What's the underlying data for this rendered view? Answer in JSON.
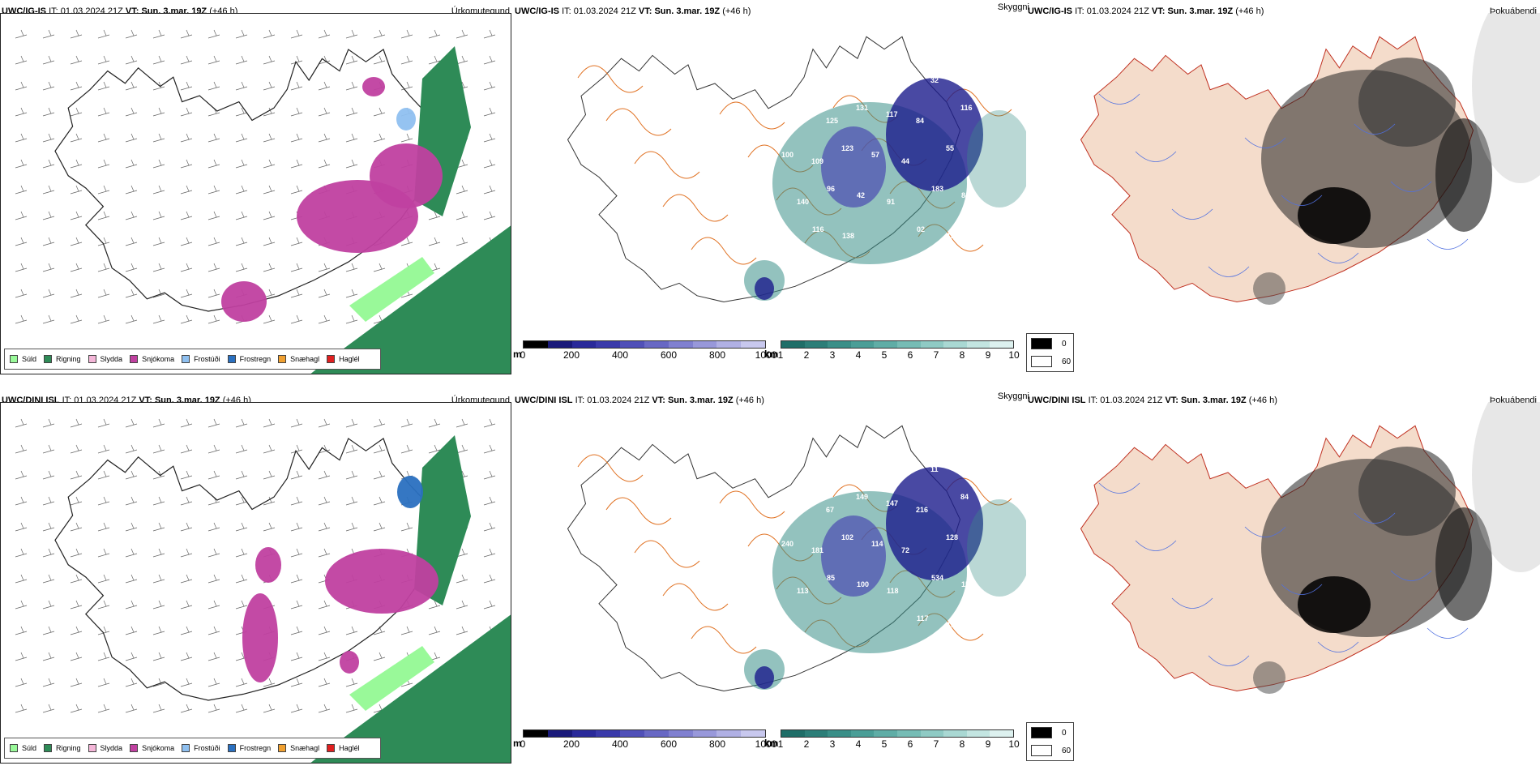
{
  "rows": [
    {
      "model": "UWC/IG-IS",
      "it_label": "IT:",
      "it_value": "01.03.2024 21Z",
      "vt_label": "VT:",
      "vt_value": "Sun. 3.mar. 19Z",
      "lead": "(+46 h)",
      "panel1_right": "Úrkomutegund",
      "panel2_right": "Skyggni",
      "panel3_right": "Þokuábendi",
      "visibility_labels": [
        "127",
        "166",
        "142",
        "97",
        "50",
        "32",
        "116",
        "70",
        "125",
        "131",
        "117",
        "84",
        "55",
        "100",
        "109",
        "123",
        "57",
        "44",
        "183",
        "84",
        "140",
        "96",
        "42",
        "91",
        "02",
        "126",
        "365",
        "116",
        "138"
      ]
    },
    {
      "model": "UWC/DINI ISL",
      "it_label": "IT:",
      "it_value": "01.03.2024 21Z",
      "vt_label": "VT:",
      "vt_value": "Sun. 3.mar. 19Z",
      "lead": "(+46 h)",
      "panel1_right": "Úrkomutegund",
      "panel2_right": "Skyggni",
      "panel3_right": "Þokuábendi",
      "visibility_labels": [
        "88",
        "68",
        "140",
        "54",
        "34",
        "11",
        "84",
        "74",
        "67",
        "149",
        "147",
        "216",
        "128",
        "240",
        "181",
        "102",
        "114",
        "72",
        "534",
        "153",
        "113",
        "85",
        "100",
        "118",
        "117",
        "153",
        "168"
      ]
    }
  ],
  "precip_legend": [
    {
      "label": "Súld",
      "color": "#99f999"
    },
    {
      "label": "Rigning",
      "color": "#2e8b57"
    },
    {
      "label": "Slydda",
      "color": "#f4b6d8"
    },
    {
      "label": "Snjókoma",
      "color": "#c040a0"
    },
    {
      "label": "Frostúði",
      "color": "#8fc0f0"
    },
    {
      "label": "Frostregn",
      "color": "#2a70c0"
    },
    {
      "label": "Snæhagl",
      "color": "#f0a030"
    },
    {
      "label": "Haglél",
      "color": "#e02020"
    }
  ],
  "meter_scale": {
    "unit": "m",
    "ticks": [
      "0",
      "200",
      "400",
      "600",
      "800",
      "1000"
    ]
  },
  "km_scale": {
    "unit": "km",
    "ticks": [
      "1",
      "2",
      "3",
      "4",
      "5",
      "6",
      "7",
      "8",
      "9",
      "10"
    ]
  },
  "fog_scale": [
    "0",
    "60"
  ],
  "colors": {
    "rain": "#2e8b57",
    "snow": "#c040a0",
    "drizzle": "#99f999",
    "freezing_drizzle": "#8fc0f0",
    "freezing_rain": "#2a70c0",
    "vis_low": "#1c1c8c",
    "vis_mid": "#4a4ab0",
    "vis_km": "#3a8f88",
    "land": "#f4dccb",
    "roads": "#e07020",
    "rivers": "#5070e0"
  }
}
